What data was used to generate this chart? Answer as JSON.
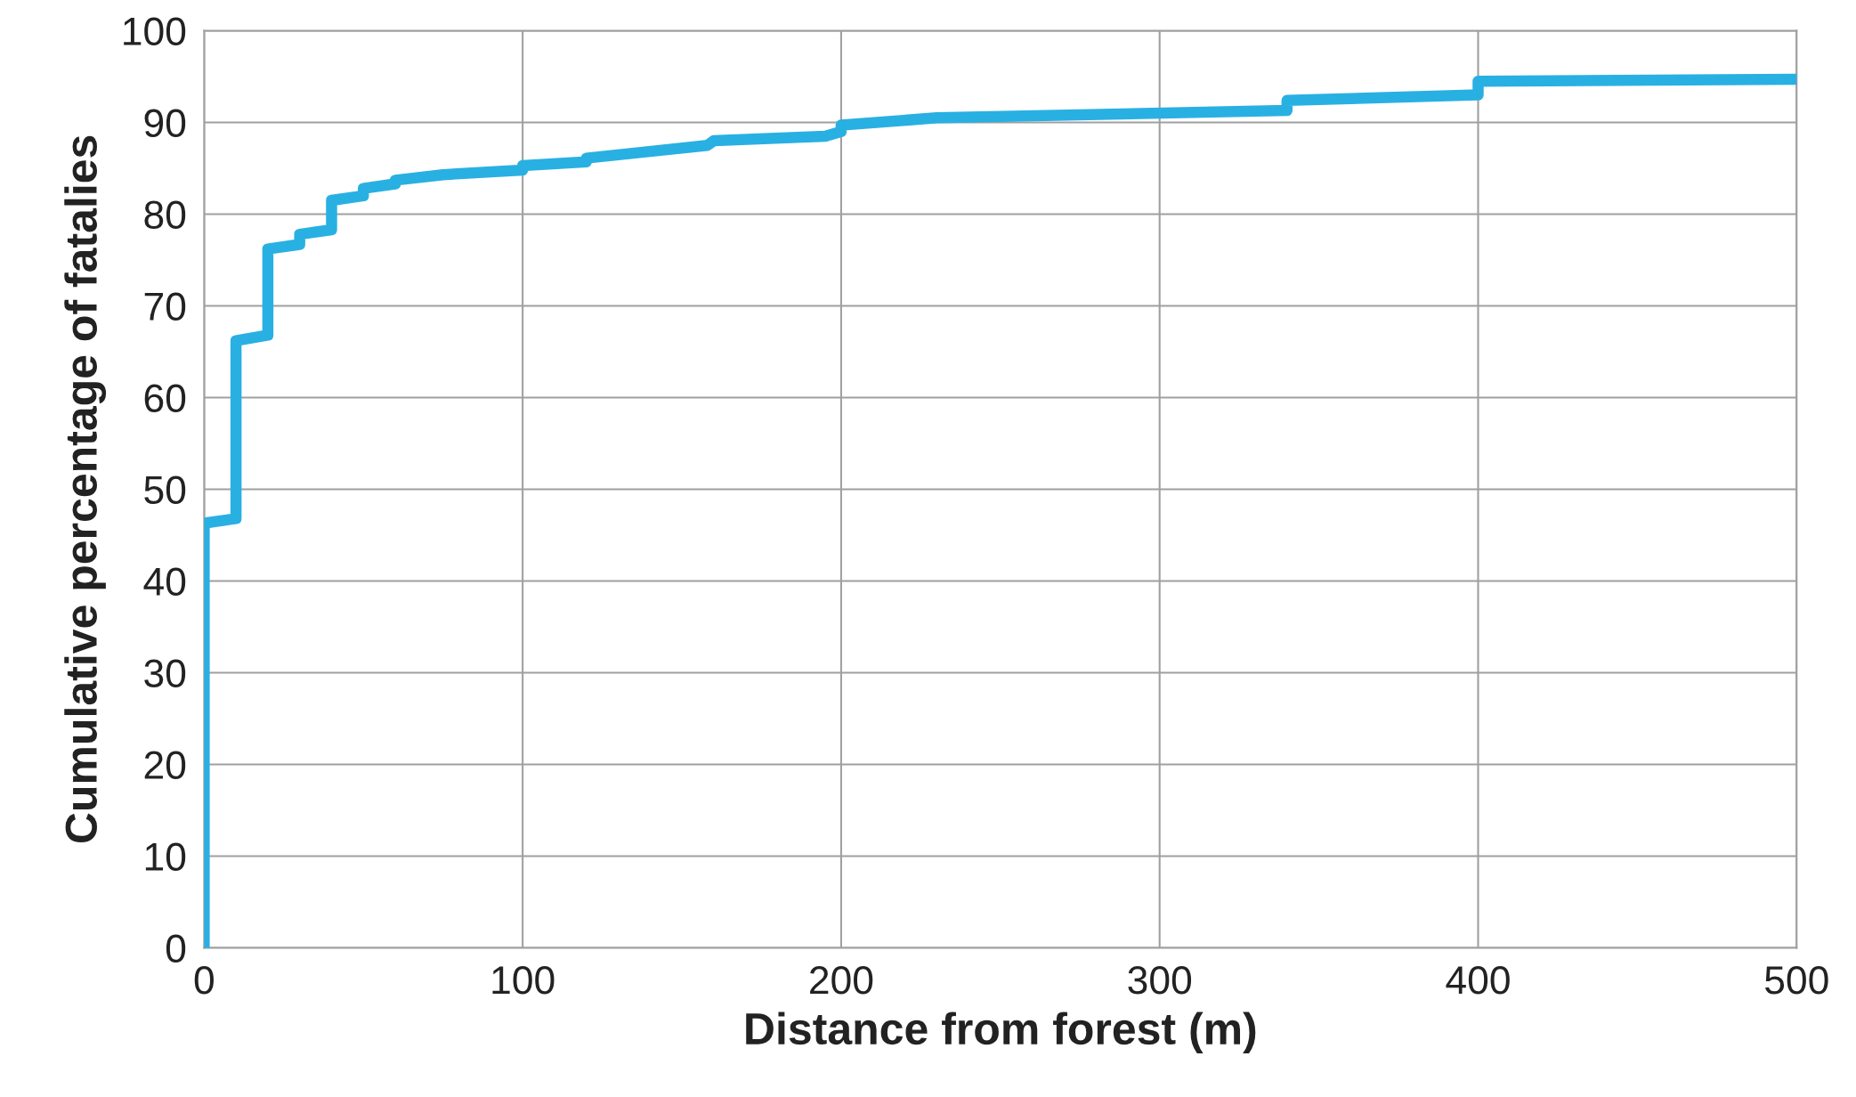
{
  "chart_data": {
    "type": "line",
    "xlabel": "Distance from forest (m)",
    "ylabel": "Cumulative percentage of fatalies",
    "series": [
      {
        "color": "#29b0e2",
        "x": [
          0,
          0,
          10,
          10,
          20,
          20,
          30,
          30,
          40,
          40,
          50,
          50,
          60,
          60,
          75,
          100,
          100,
          120,
          120,
          158,
          160,
          195,
          200,
          200,
          230,
          340,
          340,
          400,
          400,
          500
        ],
        "values": [
          0,
          46.3,
          46.8,
          66.2,
          66.8,
          76.2,
          76.7,
          77.8,
          78.3,
          81.5,
          82,
          82.8,
          83.3,
          83.7,
          84.3,
          84.8,
          85.3,
          85.7,
          86.1,
          87.5,
          88,
          88.5,
          89,
          89.7,
          90.5,
          91.3,
          92.4,
          93,
          94.5,
          94.7
        ]
      }
    ],
    "xlim": [
      0,
      500
    ],
    "xticks": [
      0,
      100,
      200,
      300,
      400,
      500
    ],
    "ylim": [
      0,
      100
    ],
    "yticks": [
      0,
      10,
      20,
      30,
      40,
      50,
      60,
      70,
      80,
      90,
      100
    ],
    "grid": true,
    "line_style": "solid",
    "marker": "none"
  }
}
